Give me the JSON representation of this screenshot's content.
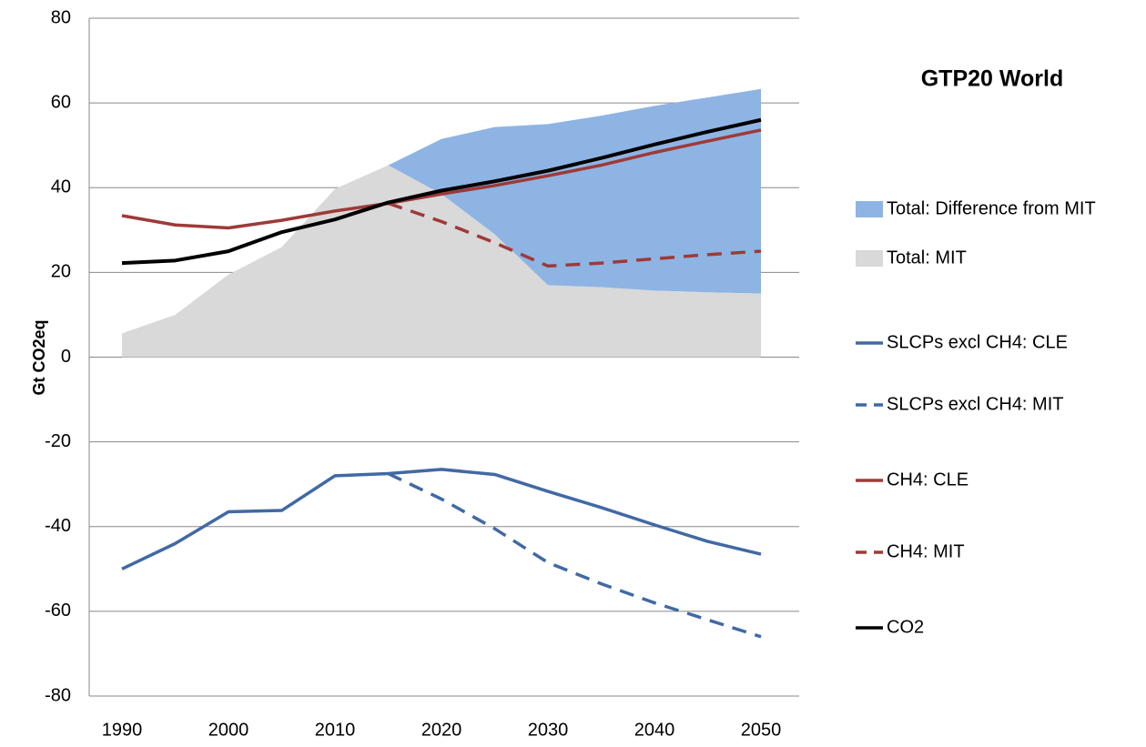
{
  "chart_data": {
    "type": "line",
    "title": "GTP20 World",
    "y_label": "Gt CO2eq",
    "categories": [
      "1990",
      null,
      "2000",
      null,
      "2010",
      null,
      "2020",
      null,
      "2030",
      null,
      "2040",
      null,
      "2050"
    ],
    "ylim": [
      -80,
      80
    ],
    "yticks": [
      -80,
      -60,
      -40,
      -20,
      0,
      20,
      40,
      60,
      80
    ],
    "grid": true,
    "legend": "right",
    "series": [
      {
        "name": "Total: Difference from MIT",
        "color": "#8eb4e3",
        "style": "area",
        "stacked": true,
        "values": [
          null,
          null,
          null,
          null,
          null,
          0,
          13,
          25.3,
          38,
          40.5,
          43.6,
          46,
          48.3
        ]
      },
      {
        "name": "Total: MIT",
        "color": "#d9d9d9",
        "style": "area",
        "values": [
          5.6,
          10,
          19.5,
          26,
          39.7,
          45.3,
          38.5,
          29,
          17,
          16.5,
          15.7,
          15.3,
          15
        ]
      },
      {
        "name": "SLCPs excl CH4: CLE",
        "color": "#4169a5",
        "style": "line",
        "values": [
          -50,
          -44,
          -36.5,
          -36.2,
          -28,
          -27.5,
          -26.5,
          -27.7,
          -31.7,
          -35.5,
          -39.6,
          -43.5,
          -46.5
        ]
      },
      {
        "name": "SLCPs excl CH4: MIT",
        "color": "#4169a5",
        "style": "line",
        "dashed": true,
        "values": [
          null,
          null,
          null,
          null,
          null,
          -27.5,
          -33.5,
          -40.5,
          -48.5,
          -53.5,
          -58,
          -62,
          -66
        ]
      },
      {
        "name": "CH4: CLE",
        "color": "#9e3a38",
        "style": "line",
        "values": [
          33.4,
          31.2,
          30.5,
          32.3,
          34.5,
          36.3,
          38.5,
          40.5,
          42.8,
          45.3,
          48.3,
          51,
          53.6
        ]
      },
      {
        "name": "CH4: MIT",
        "color": "#9e3a38",
        "style": "line",
        "dashed": true,
        "values": [
          null,
          null,
          null,
          null,
          null,
          36.3,
          32,
          27,
          21.5,
          22.2,
          23.2,
          24.2,
          25
        ]
      },
      {
        "name": "CO2",
        "color": "#000000",
        "style": "line",
        "values": [
          22.2,
          22.8,
          25,
          29.5,
          32.5,
          36.5,
          39.3,
          41.5,
          44,
          47,
          50.2,
          53.2,
          56
        ]
      }
    ]
  }
}
